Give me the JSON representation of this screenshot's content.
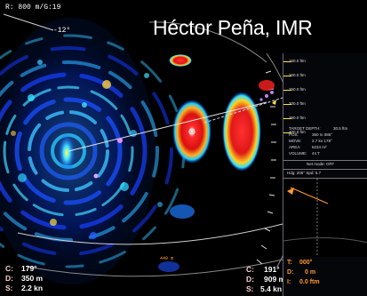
{
  "overlay": {
    "credit": "Héctor Peña, IMR"
  },
  "top_left": {
    "range_gain": "R: 800 m/G:19",
    "tilt": "-12°"
  },
  "bottom_left": {
    "course_label": "C:",
    "course_value": "179°",
    "depth_label": "D:",
    "depth_value": "350 m",
    "speed_label": "S:",
    "speed_value": "2.2 kn"
  },
  "bottom_mid": {
    "course_label": "C:",
    "course_value": "191°",
    "depth_label": "D:",
    "depth_value": "909 m",
    "speed_label": "S:",
    "speed_value": "5.4 kn"
  },
  "range_ring_label": "440 m",
  "right_panel": {
    "scale": [
      "150.0 ftm",
      "200.0 ftm",
      "250.0 ftm",
      "300.0 ftm",
      "350.0 ftm",
      "400.0 ftm"
    ],
    "target_depth_label": "TARGET DEPTH:",
    "target_depth_value": "30.5 ftm",
    "pos_label": "POS:",
    "pos_value": "350 m   085°",
    "move_label": "MOVE:",
    "move_value": "2.7 kn   178°",
    "area_label": "AREA:",
    "area_value": "6234 m²",
    "volume_label": "VOLUME:",
    "volume_value": "44 T",
    "net_mode": "Net mode: OFF",
    "hdg": "Hdg: 205°   Spd: 5.7",
    "bottom_t_label": "T:",
    "bottom_t_value": "000°",
    "bottom_d_label": "D:",
    "bottom_d_value": "0 m",
    "bottom_i_label": "I:",
    "bottom_i_value": "0.0 ftm"
  }
}
